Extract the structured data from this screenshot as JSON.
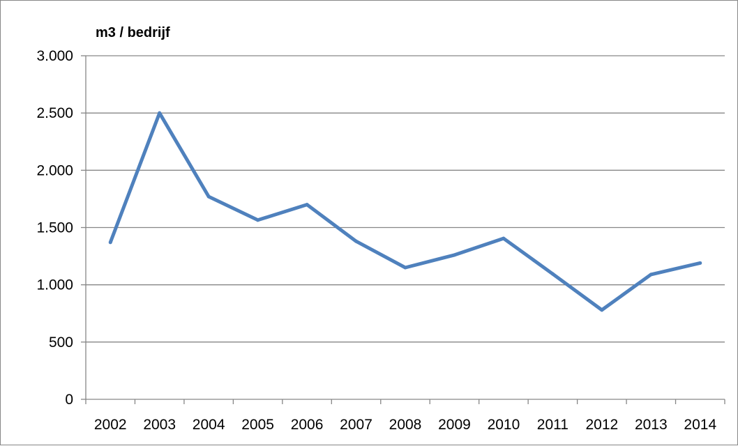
{
  "chart_data": {
    "type": "line",
    "title": "",
    "xlabel": "",
    "ylabel": "m3 / bedrijf",
    "categories": [
      "2002",
      "2003",
      "2004",
      "2005",
      "2006",
      "2007",
      "2008",
      "2009",
      "2010",
      "2011",
      "2012",
      "2013",
      "2014"
    ],
    "series": [
      {
        "values": [
          1370,
          2500,
          1770,
          1565,
          1700,
          1380,
          1150,
          1260,
          1405,
          1095,
          780,
          1090,
          1190
        ]
      }
    ],
    "ylim": [
      0,
      3000
    ],
    "y_ticks": [
      0,
      500,
      1000,
      1500,
      2000,
      2500,
      3000
    ],
    "y_tick_labels": [
      "0",
      "500",
      "1.000",
      "1.500",
      "2.000",
      "2.500",
      "3.000"
    ],
    "grid": "horizontal",
    "legend": "none",
    "colors": {
      "line": "#4f81bd",
      "grid": "#868686",
      "axis": "#868686"
    }
  }
}
